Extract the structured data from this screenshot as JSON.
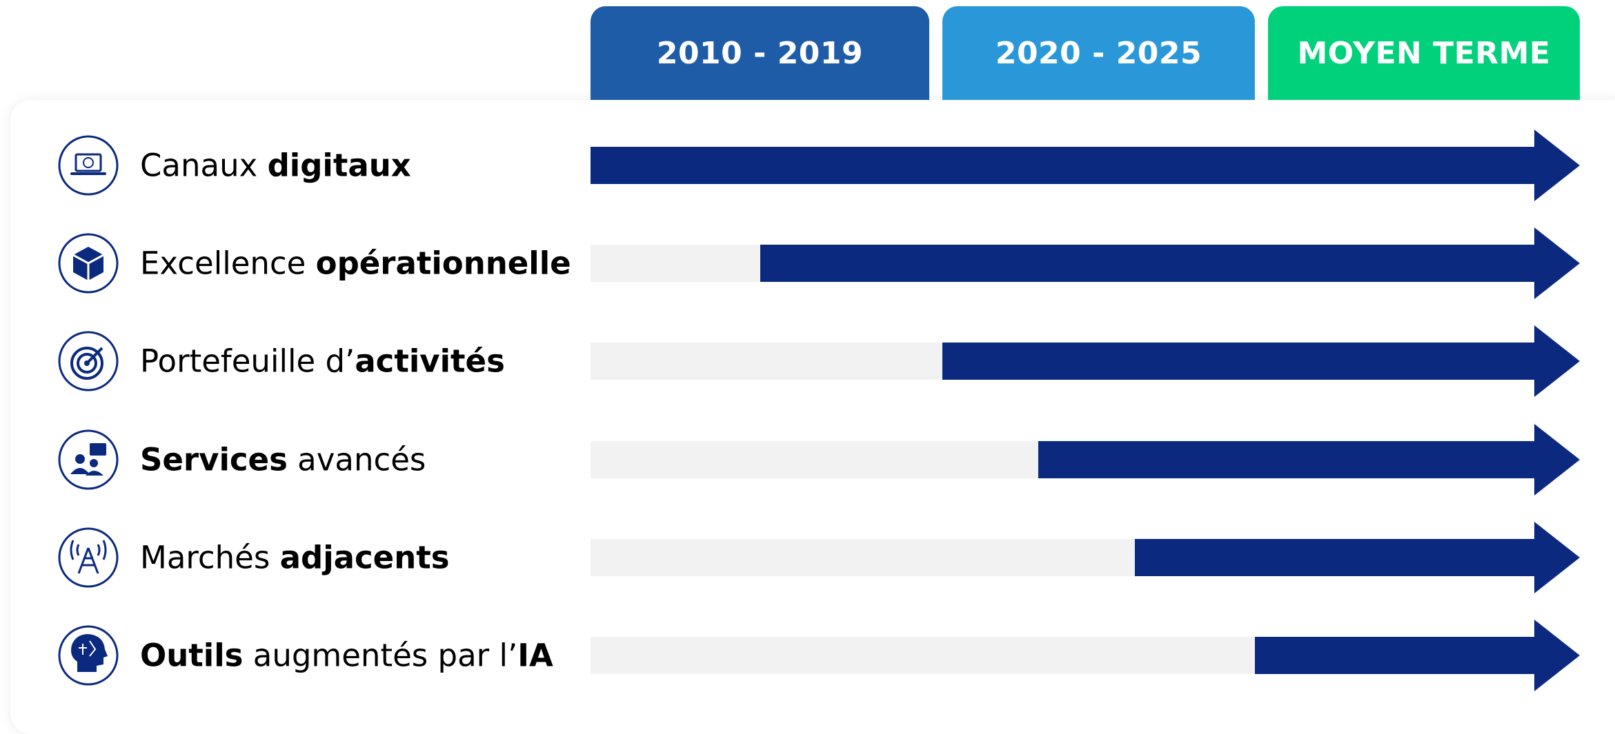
{
  "header": {
    "periods": [
      {
        "text": "2010 - 2019",
        "color": "#1f5ca8"
      },
      {
        "text": "2020 - 2025",
        "color": "#2a98d8"
      },
      {
        "text": "MOYEN TERME",
        "color": "#00d17a"
      }
    ]
  },
  "rows": [
    {
      "parts": [
        {
          "text": "Canaux ",
          "bold": false
        },
        {
          "text": "digitaux",
          "bold": true
        }
      ]
    },
    {
      "parts": [
        {
          "text": "Excellence ",
          "bold": false
        },
        {
          "text": "opérationnelle",
          "bold": true
        }
      ]
    },
    {
      "parts": [
        {
          "text": "Portefeuille d’",
          "bold": false
        },
        {
          "text": "activités",
          "bold": true
        }
      ]
    },
    {
      "parts": [
        {
          "text": "Services",
          "bold": true
        },
        {
          "text": " avancés",
          "bold": false
        }
      ]
    },
    {
      "parts": [
        {
          "text": "Marchés ",
          "bold": false
        },
        {
          "text": "adjacents",
          "bold": true
        }
      ]
    },
    {
      "parts": [
        {
          "text": "Outils",
          "bold": true
        },
        {
          "text": " augmentés par l’",
          "bold": false
        },
        {
          "text": "IA",
          "bold": true
        }
      ]
    }
  ]
}
